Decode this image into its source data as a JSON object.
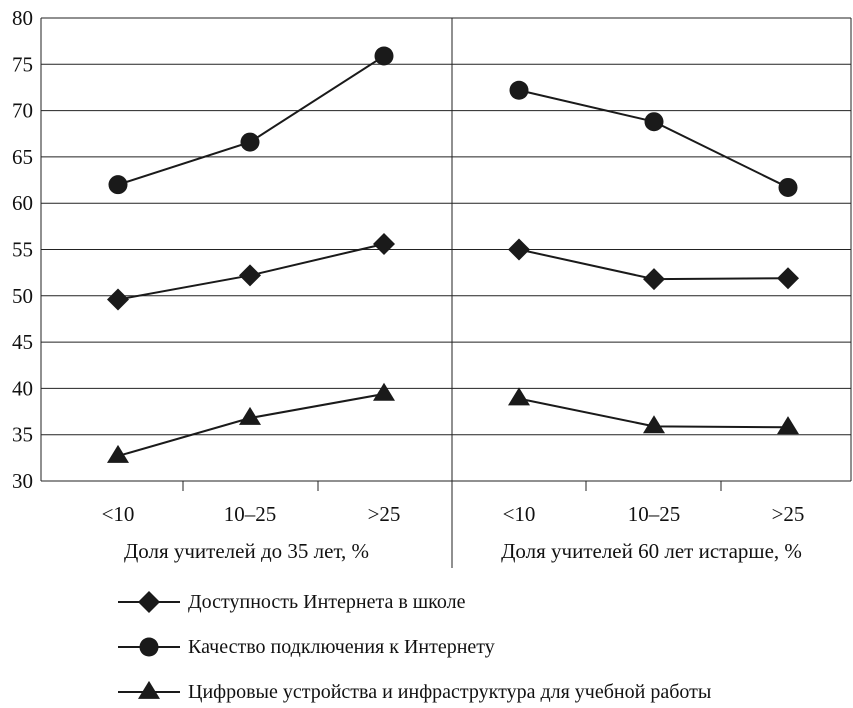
{
  "chart_data": {
    "type": "line",
    "ylim": [
      30,
      80
    ],
    "y_ticks": [
      30,
      35,
      40,
      45,
      50,
      55,
      60,
      65,
      70,
      75,
      80
    ],
    "grid": "horizontal",
    "legend_placement": "bottom",
    "panels": [
      {
        "xlabel": "Доля учителей до 35 лет, %",
        "categories": [
          "<10",
          "10–25",
          ">25"
        ]
      },
      {
        "xlabel": "Доля учителей 60 лет истарше, %",
        "categories": [
          "<10",
          "10–25",
          ">25"
        ]
      }
    ],
    "series": [
      {
        "name": "Доступность Интернета в школе",
        "marker": "diamond",
        "values": [
          [
            49.6,
            52.2,
            55.6
          ],
          [
            55.0,
            51.8,
            51.9
          ]
        ]
      },
      {
        "name": "Качество подключения к Интернету",
        "marker": "circle",
        "values": [
          [
            62.0,
            66.6,
            75.9
          ],
          [
            72.2,
            68.8,
            61.7
          ]
        ]
      },
      {
        "name": "Цифровые устройства и инфраструктура для учебной работы",
        "marker": "triangle",
        "values": [
          [
            32.7,
            36.8,
            39.4
          ],
          [
            38.9,
            35.9,
            35.8
          ]
        ]
      }
    ],
    "colors": {
      "line": "#1a1a1a",
      "grid": "#222222",
      "background": "#ffffff"
    }
  }
}
